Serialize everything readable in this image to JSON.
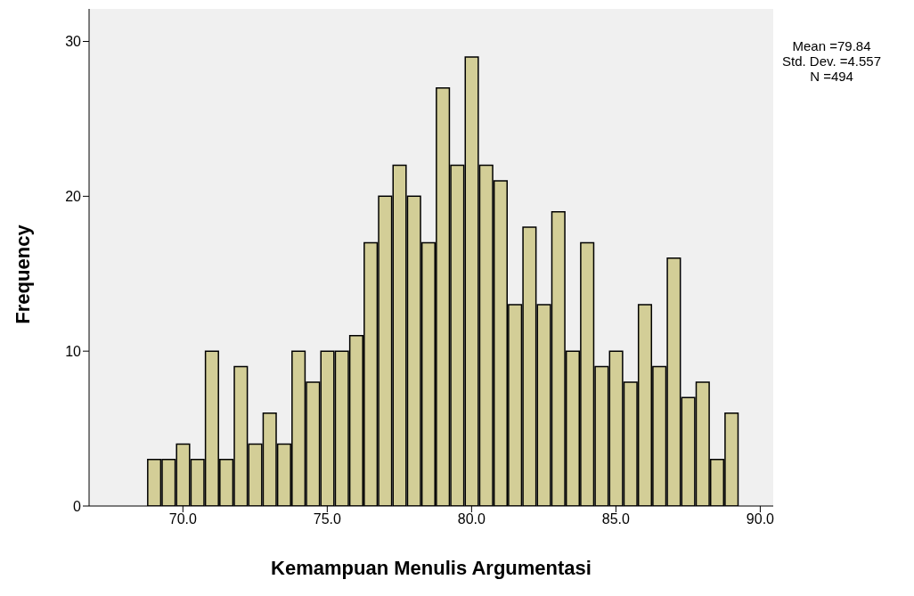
{
  "chart_data": {
    "type": "histogram",
    "xlabel": "Kemampuan Menulis Argumentasi",
    "ylabel": "Frequency",
    "bins": [
      68.75,
      69.25,
      69.75,
      70.25,
      70.75,
      71.25,
      71.75,
      72.25,
      72.75,
      73.25,
      73.75,
      74.25,
      74.75,
      75.25,
      75.75,
      76.25,
      76.75,
      77.25,
      77.75,
      78.25,
      78.75,
      79.25,
      79.75,
      80.25,
      80.75,
      81.25,
      81.75,
      82.25,
      82.75,
      83.25,
      83.75,
      84.25,
      84.75,
      85.25,
      85.75,
      86.25,
      86.75,
      87.25,
      87.75,
      88.25,
      88.75,
      89.25
    ],
    "values": [
      3,
      3,
      4,
      3,
      10,
      3,
      9,
      4,
      6,
      4,
      10,
      8,
      10,
      10,
      11,
      17,
      20,
      22,
      20,
      17,
      27,
      22,
      29,
      22,
      21,
      13,
      18,
      13,
      19,
      10,
      17,
      9,
      10,
      8,
      13,
      9,
      16,
      7,
      8,
      3,
      6
    ],
    "color": "#d3ce97",
    "xlim": [
      66.75,
      90.45
    ],
    "xticks": [
      {
        "value": 70,
        "label": "70.0"
      },
      {
        "value": 75,
        "label": "75.0"
      },
      {
        "value": 80,
        "label": "80.0"
      },
      {
        "value": 85,
        "label": "85.0"
      },
      {
        "value": 90,
        "label": "90.0"
      }
    ],
    "ylim": [
      0,
      32.1
    ],
    "yticks": [
      0,
      10,
      20,
      30
    ],
    "annotations": [
      "Mean =79.84",
      "Std. Dev. =4.557",
      "N =494"
    ]
  }
}
